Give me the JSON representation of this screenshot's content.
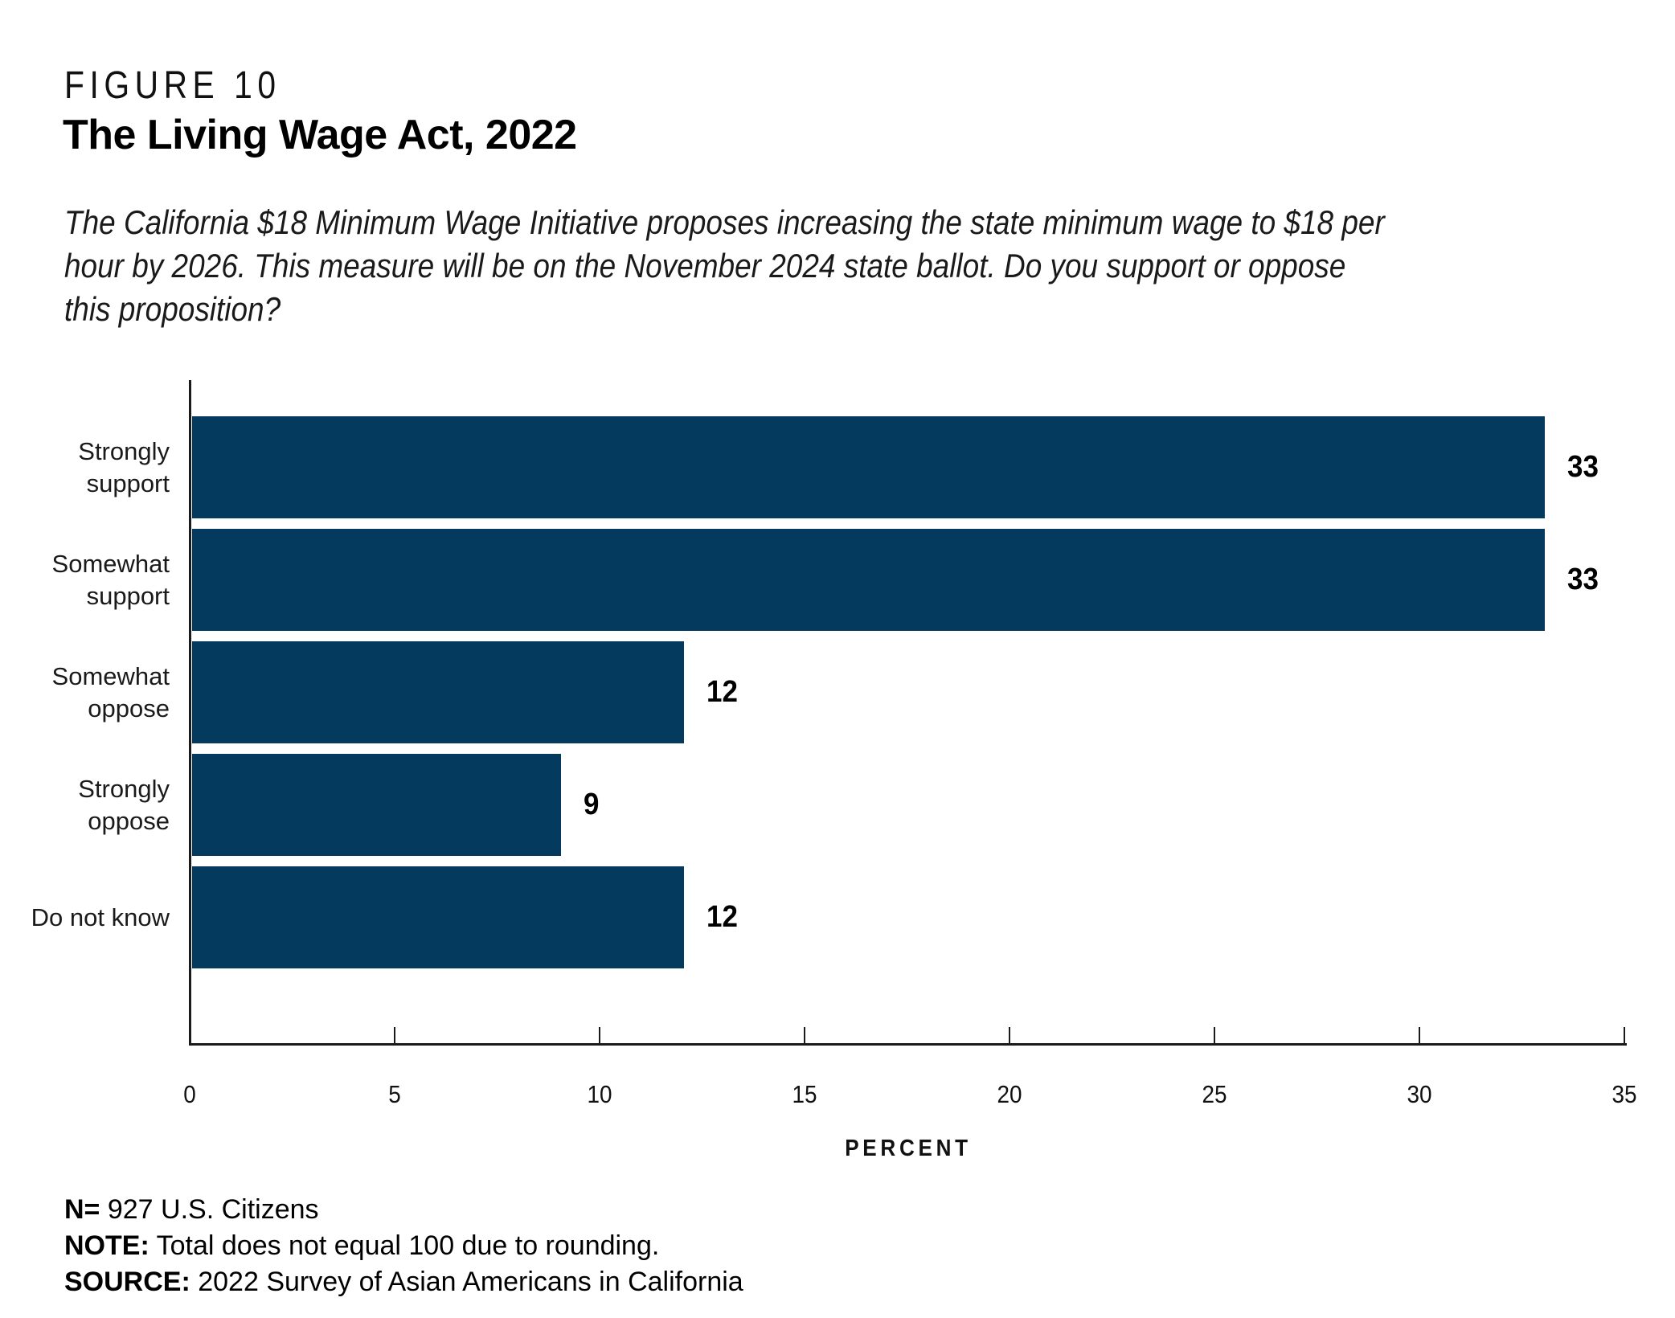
{
  "figure": {
    "label": "FIGURE 10",
    "title": "The Living Wage Act, 2022"
  },
  "question": {
    "lines": [
      "The California $18 Minimum Wage Initiative proposes increasing the state minimum wage to $18 per",
      "hour by 2026. This measure will be on the November 2024 state ballot. Do you support or oppose",
      "this proposition?"
    ]
  },
  "chart_data": {
    "type": "bar",
    "orientation": "horizontal",
    "title": "The Living Wage Act, 2022",
    "categories": [
      "Strongly support",
      "Somewhat support",
      "Somewhat oppose",
      "Strongly oppose",
      "Do not know"
    ],
    "category_label_lines": [
      [
        "Strongly",
        "support"
      ],
      [
        "Somewhat",
        "support"
      ],
      [
        "Somewhat",
        "oppose"
      ],
      [
        "Strongly",
        "oppose"
      ],
      [
        "Do not know"
      ]
    ],
    "values": [
      33,
      33,
      12,
      9,
      12
    ],
    "value_labels": [
      "33",
      "33",
      "12",
      "9",
      "12"
    ],
    "xlabel": "PERCENT",
    "ylabel": "",
    "xlim": [
      0,
      35
    ],
    "xticks": [
      0,
      5,
      10,
      15,
      20,
      25,
      30,
      35
    ],
    "grid": false,
    "legend": "none",
    "bar_color": "#053A5F"
  },
  "footer": {
    "lines": [
      {
        "label": "N=",
        "text": " 927 U.S. Citizens"
      },
      {
        "label": "NOTE:",
        "text": " Total does not equal 100 due to rounding."
      },
      {
        "label": "SOURCE:",
        "text": " 2022 Survey of Asian Americans in California"
      }
    ]
  }
}
